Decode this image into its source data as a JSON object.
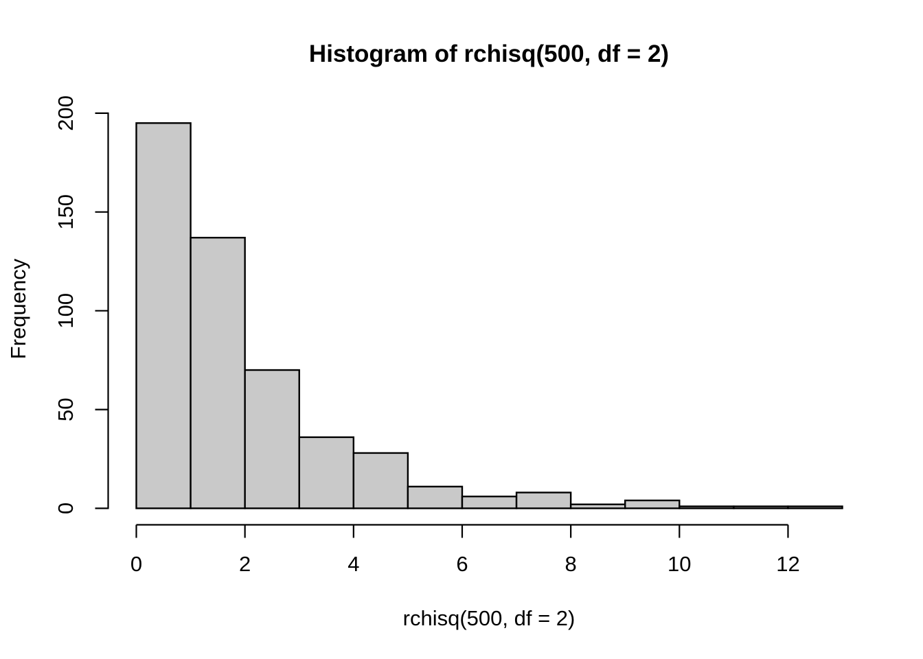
{
  "chart_data": {
    "type": "bar",
    "subtype": "histogram",
    "title": "Histogram of rchisq(500, df = 2)",
    "xlabel": "rchisq(500, df = 2)",
    "ylabel": "Frequency",
    "bin_start": 0,
    "bin_width": 1,
    "bin_edges": [
      0,
      1,
      2,
      3,
      4,
      5,
      6,
      7,
      8,
      9,
      10,
      11,
      12,
      13
    ],
    "values": [
      195,
      137,
      70,
      36,
      28,
      11,
      6,
      8,
      2,
      4,
      1,
      1,
      1
    ],
    "x_ticks": [
      0,
      2,
      4,
      6,
      8,
      10,
      12
    ],
    "y_ticks": [
      0,
      50,
      100,
      150,
      200
    ],
    "xlim": [
      0,
      13
    ],
    "ylim": [
      0,
      200
    ],
    "grid": "off",
    "legend": "none",
    "bar_fill": "#C9C9C9",
    "bar_stroke": "#000000",
    "axis_color": "#000000",
    "text_color": "#000000",
    "background": "#ffffff"
  }
}
